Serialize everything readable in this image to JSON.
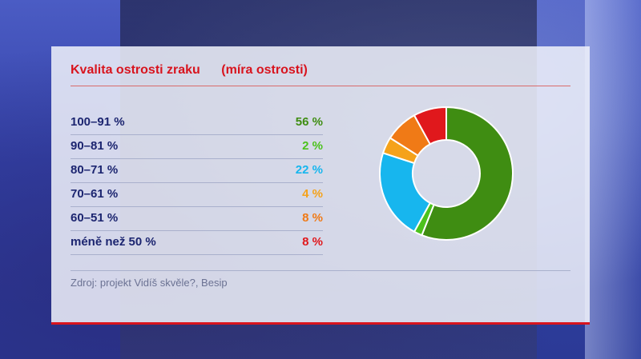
{
  "chart_data": {
    "type": "pie",
    "title": "Kvalita ostrosti zraku",
    "subtitle": "(míra ostrosti)",
    "categories": [
      "100–91 %",
      "90–81 %",
      "80–71 %",
      "70–61 %",
      "60–51 %",
      "méně než 50 %"
    ],
    "values": [
      56,
      2,
      22,
      4,
      8,
      8
    ],
    "value_labels": [
      "56 %",
      "2 %",
      "22 %",
      "4 %",
      "8 %",
      "8 %"
    ],
    "colors": [
      "#3f8d12",
      "#4cc21c",
      "#17b6ee",
      "#f5a21a",
      "#f07a16",
      "#e0181c"
    ],
    "source": "Zdroj: projekt Vidíš skvěle?, Besip"
  }
}
